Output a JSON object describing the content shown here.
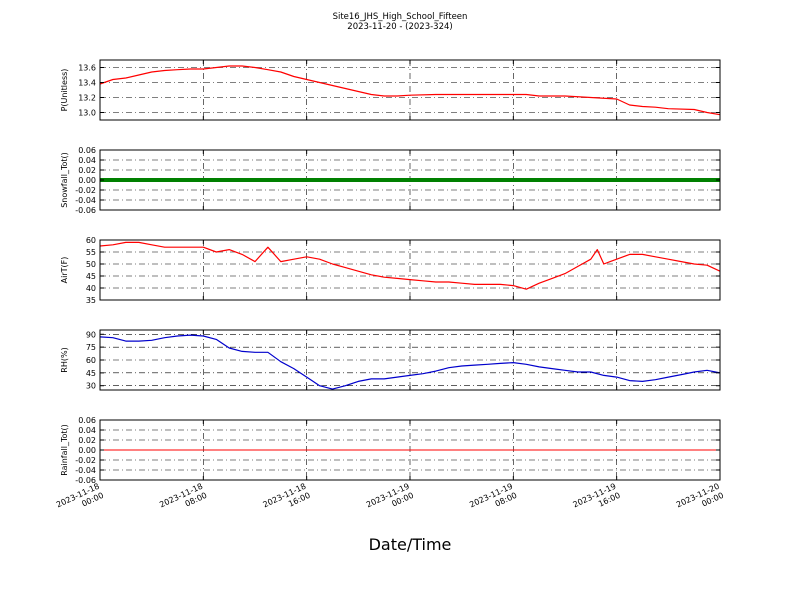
{
  "title": "Site16_JHS_High_School_Fifteen",
  "subtitle": "2023-11-20 - (2023-324)",
  "xlabel": "Date/Time",
  "x_ticks": [
    {
      "x": 0,
      "line1": "2023-11-18",
      "line2": "00:00"
    },
    {
      "x": 8,
      "line1": "2023-11-18",
      "line2": "08:00"
    },
    {
      "x": 16,
      "line1": "2023-11-18",
      "line2": "16:00"
    },
    {
      "x": 24,
      "line1": "2023-11-19",
      "line2": "00:00"
    },
    {
      "x": 32,
      "line1": "2023-11-19",
      "line2": "08:00"
    },
    {
      "x": 40,
      "line1": "2023-11-19",
      "line2": "16:00"
    },
    {
      "x": 48,
      "line1": "2023-11-20",
      "line2": "00:00"
    }
  ],
  "chart_data": [
    {
      "type": "line",
      "ylabel": "P(Unitless)",
      "ylim": [
        12.9,
        13.7
      ],
      "yticks": [
        13.0,
        13.2,
        13.4,
        13.6
      ],
      "tick_decimals": 1,
      "grid": true,
      "color": "#ff0000",
      "line_width": 1.2,
      "x": [
        0,
        1,
        2,
        3,
        4,
        5,
        6,
        7,
        8,
        9,
        10,
        11,
        12,
        13,
        14,
        15,
        16,
        17,
        18,
        19,
        20,
        21,
        22,
        23,
        24,
        26,
        28,
        30,
        32,
        33,
        34,
        36,
        38,
        40,
        41,
        42,
        43,
        44,
        46,
        47,
        48
      ],
      "y": [
        13.38,
        13.44,
        13.46,
        13.5,
        13.54,
        13.56,
        13.57,
        13.58,
        13.58,
        13.6,
        13.62,
        13.62,
        13.6,
        13.57,
        13.54,
        13.48,
        13.44,
        13.4,
        13.36,
        13.32,
        13.28,
        13.24,
        13.22,
        13.22,
        13.23,
        13.24,
        13.24,
        13.24,
        13.24,
        13.24,
        13.22,
        13.22,
        13.2,
        13.18,
        13.1,
        13.08,
        13.07,
        13.05,
        13.04,
        13.0,
        12.97
      ]
    },
    {
      "type": "line",
      "ylabel": "Snowfall_Tot()",
      "ylim": [
        -0.06,
        0.06
      ],
      "yticks": [
        -0.06,
        -0.04,
        -0.02,
        0.0,
        0.02,
        0.04,
        0.06
      ],
      "tick_decimals": 2,
      "grid": true,
      "color": "#008000",
      "line_width": 4,
      "x": [
        0,
        48
      ],
      "y": [
        0.0,
        0.0
      ]
    },
    {
      "type": "line",
      "ylabel": "AirT(F)",
      "ylim": [
        35,
        60
      ],
      "yticks": [
        35,
        40,
        45,
        50,
        55,
        60
      ],
      "tick_decimals": 0,
      "grid": true,
      "color": "#ff0000",
      "line_width": 1.2,
      "x": [
        0,
        1,
        2,
        3,
        4,
        5,
        6,
        7,
        8,
        9,
        10,
        11,
        12,
        13,
        14,
        15,
        16,
        17,
        18,
        19,
        20,
        21,
        22,
        23,
        24,
        25,
        26,
        27,
        28,
        29,
        30,
        31,
        32,
        33,
        34,
        35,
        36,
        37,
        38,
        38.5,
        39,
        39.5,
        40,
        41,
        42,
        43,
        44,
        45,
        46,
        47,
        48
      ],
      "y": [
        57.5,
        58,
        59,
        59,
        58,
        57,
        57,
        57,
        57,
        55,
        56,
        54,
        51,
        57,
        51,
        52,
        53,
        52,
        50,
        48.5,
        47,
        45.5,
        44.5,
        44,
        43.5,
        43,
        42.5,
        42.5,
        42,
        41.5,
        41.5,
        41.5,
        41,
        39.5,
        42,
        44,
        46,
        49,
        52,
        56,
        50,
        51,
        52,
        54,
        54,
        53,
        52,
        51,
        50,
        49.5,
        47
      ]
    },
    {
      "type": "line",
      "ylabel": "RH(%)",
      "ylim": [
        25,
        95
      ],
      "yticks": [
        30,
        45,
        60,
        75,
        90
      ],
      "tick_decimals": 0,
      "grid": true,
      "color": "#0000cc",
      "line_width": 1.2,
      "x": [
        0,
        1,
        2,
        3,
        4,
        5,
        6,
        7,
        8,
        9,
        10,
        11,
        12,
        13,
        14,
        15,
        16,
        17,
        18,
        19,
        20,
        21,
        22,
        23,
        24,
        25,
        26,
        27,
        28,
        29,
        30,
        31,
        32,
        33,
        34,
        35,
        36,
        37,
        38,
        39,
        40,
        41,
        42,
        43,
        44,
        45,
        46,
        47,
        48
      ],
      "y": [
        87,
        86,
        82,
        82,
        83,
        86,
        88,
        89,
        88,
        84,
        74,
        70,
        69,
        69,
        58,
        50,
        40,
        30,
        26,
        30,
        35,
        38,
        38,
        40,
        42,
        44,
        47,
        51,
        53,
        54,
        55,
        56,
        57,
        55,
        52,
        50,
        48,
        46,
        46,
        42,
        40,
        36,
        35,
        37,
        40,
        43,
        46,
        48,
        45
      ]
    },
    {
      "type": "line",
      "ylabel": "Rainfall_Tot()",
      "ylim": [
        -0.06,
        0.06
      ],
      "yticks": [
        -0.06,
        -0.04,
        -0.02,
        0.0,
        0.02,
        0.04,
        0.06
      ],
      "tick_decimals": 2,
      "grid": true,
      "color": "#ff0000",
      "line_width": 1,
      "x": [
        0,
        48
      ],
      "y": [
        0.0,
        0.0
      ]
    }
  ]
}
